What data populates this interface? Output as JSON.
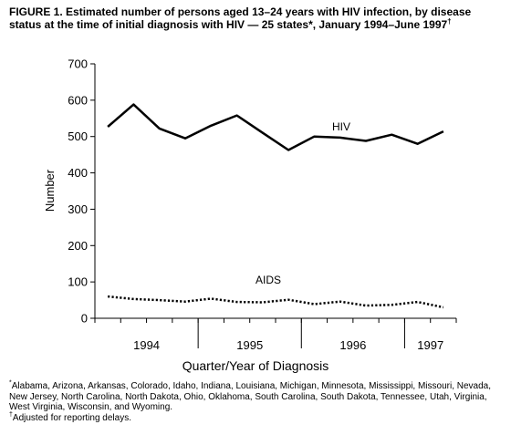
{
  "figure": {
    "title_prefix": "FIGURE 1.",
    "title": "Estimated number of persons aged 13–24 years with HIV infection, by disease status at the time of initial diagnosis with HIV — 25 states*, January 1994–June 1997",
    "title_dagger": "†"
  },
  "footnotes": [
    {
      "marker": "*",
      "text": "Alabama, Arizona, Arkansas, Colorado, Idaho, Indiana, Louisiana, Michigan, Minnesota, Mississippi, Missouri, Nevada, New Jersey, North Carolina, North Dakota, Ohio, Oklahoma, South Carolina, South Dakota, Tennessee, Utah, Virginia, West Virginia, Wisconsin, and Wyoming."
    },
    {
      "marker": "†",
      "text": "Adjusted for reporting delays."
    }
  ],
  "chart_data": {
    "type": "line",
    "xlabel": "Quarter/Year of Diagnosis",
    "ylabel": "Number",
    "ylim": [
      0,
      700
    ],
    "yticks": [
      0,
      100,
      200,
      300,
      400,
      500,
      600,
      700
    ],
    "year_labels": [
      "1994",
      "1995",
      "1996",
      "1997"
    ],
    "quarters_per_year": [
      4,
      4,
      4,
      2
    ],
    "x": [
      "1994 Q1",
      "1994 Q2",
      "1994 Q3",
      "1994 Q4",
      "1995 Q1",
      "1995 Q2",
      "1995 Q3",
      "1995 Q4",
      "1996 Q1",
      "1996 Q2",
      "1996 Q3",
      "1996 Q4",
      "1997 Q1",
      "1997 Q2"
    ],
    "series": [
      {
        "name": "HIV",
        "style": "solid",
        "color": "#000000",
        "values": [
          527,
          588,
          522,
          495,
          530,
          558,
          510,
          463,
          500,
          497,
          488,
          505,
          480,
          514
        ]
      },
      {
        "name": "AIDS",
        "style": "dotted",
        "color": "#000000",
        "values": [
          60,
          53,
          50,
          46,
          54,
          45,
          44,
          51,
          39,
          46,
          35,
          37,
          45,
          30
        ]
      }
    ],
    "grid": false,
    "legend": "inline labels"
  }
}
